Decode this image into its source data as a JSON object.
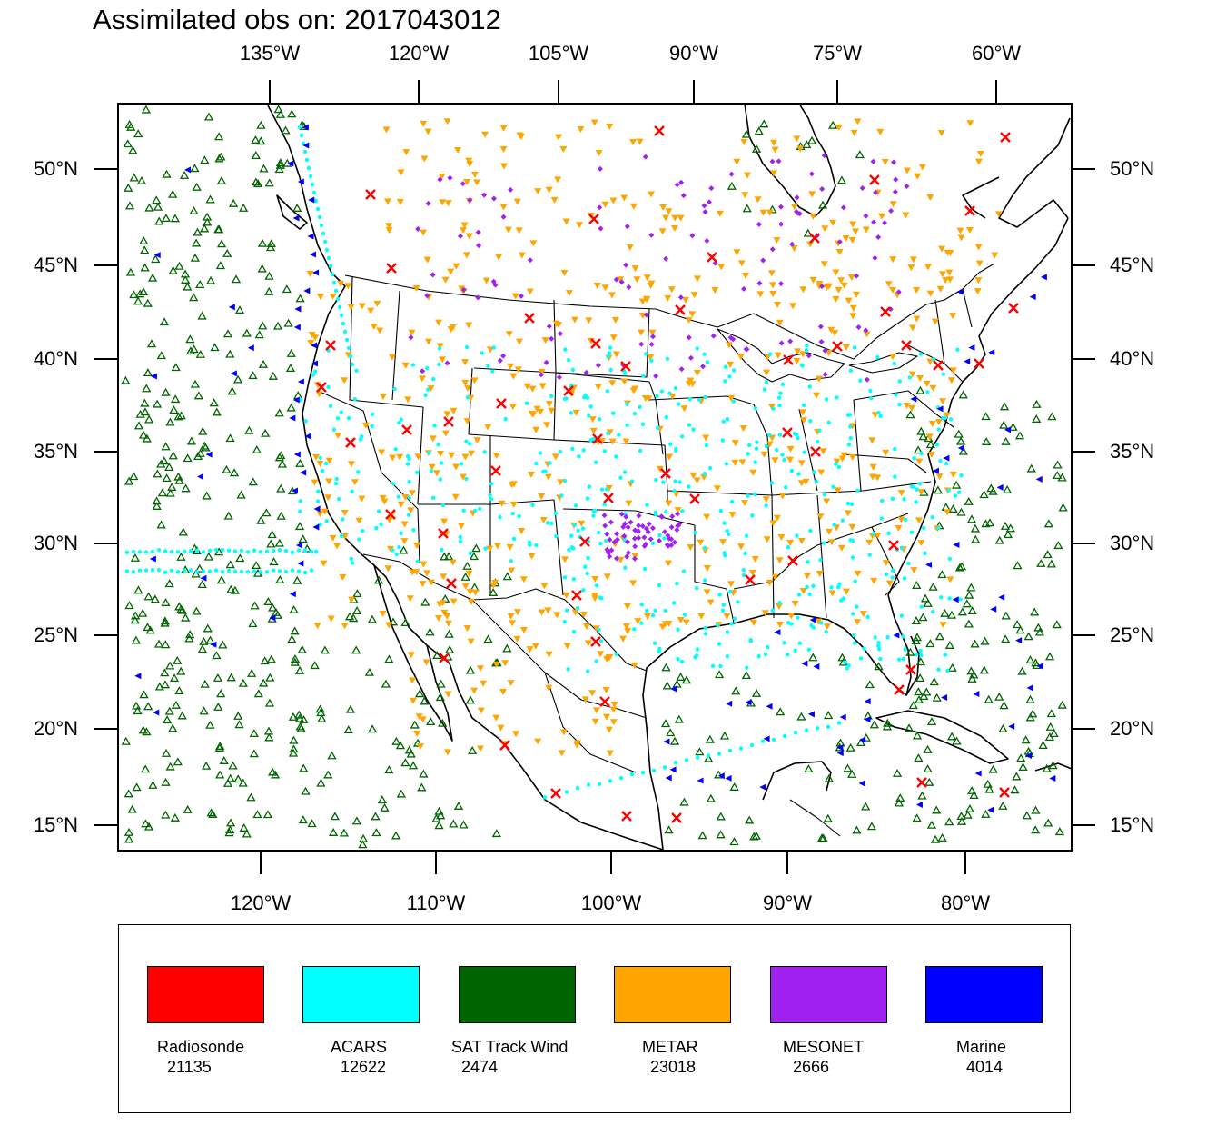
{
  "title": "Assimilated obs on: 2017043012",
  "axes": {
    "top_ticks": [
      "135°W",
      "120°W",
      "105°W",
      "90°W",
      "75°W",
      "60°W"
    ],
    "bottom_ticks": [
      "120°W",
      "110°W",
      "100°W",
      "90°W",
      "80°W"
    ],
    "left_ticks": [
      "50°N",
      "45°N",
      "40°N",
      "35°N",
      "30°N",
      "25°N",
      "20°N",
      "15°N"
    ],
    "right_ticks": [
      "50°N",
      "45°N",
      "40°N",
      "35°N",
      "30°N",
      "25°N",
      "20°N",
      "15°N"
    ]
  },
  "legend": [
    {
      "name": "Radiosonde",
      "count": "21135",
      "color": "#ff0000",
      "symbol": "x-mark"
    },
    {
      "name": "ACARS",
      "count": "12622",
      "color": "#00ffff",
      "symbol": "dot"
    },
    {
      "name": "SAT Track Wind",
      "count": "2474",
      "color": "#006400",
      "symbol": "triangle-up"
    },
    {
      "name": "METAR",
      "count": "23018",
      "color": "#ffa500",
      "symbol": "triangle-down"
    },
    {
      "name": "MESONET",
      "count": "2666",
      "color": "#a020f0",
      "symbol": "diamond"
    },
    {
      "name": "Marine",
      "count": "4014",
      "color": "#0000ff",
      "symbol": "triangle-left"
    }
  ]
}
